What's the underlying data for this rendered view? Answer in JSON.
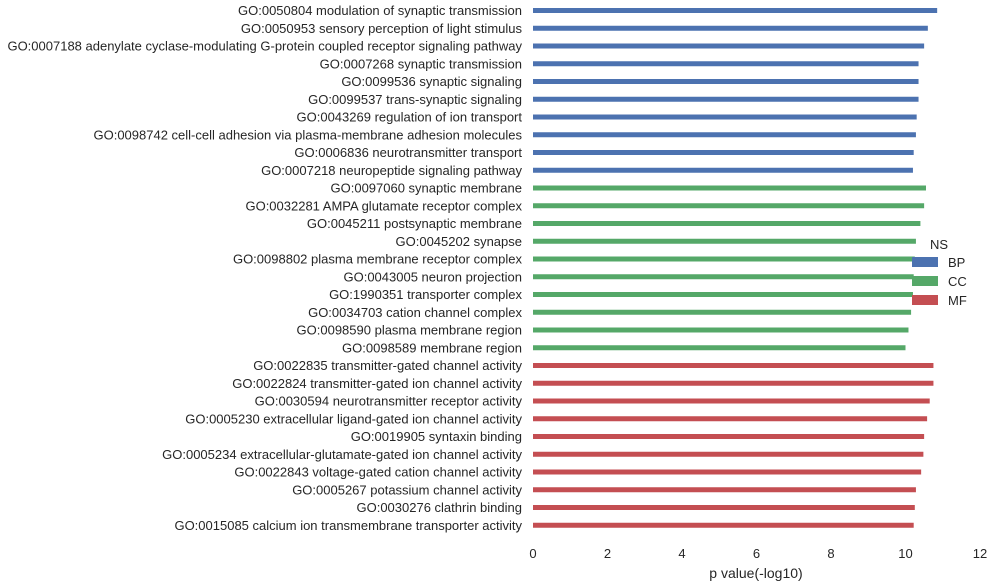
{
  "chart_data": {
    "type": "bar",
    "orientation": "horizontal",
    "xlabel": "p value(-log10)",
    "ylabel": "",
    "xlim": [
      0,
      12
    ],
    "xticks": [
      0,
      2,
      4,
      6,
      8,
      10,
      12
    ],
    "grid": false,
    "legend": {
      "title": "NS",
      "placement": "right",
      "entries": [
        "BP",
        "CC",
        "MF"
      ]
    },
    "series_colors": {
      "BP": "#4c72b0",
      "CC": "#55a868",
      "MF": "#c44e52"
    },
    "categories": [
      "GO:0050804 modulation of synaptic transmission",
      "GO:0050953 sensory perception of light stimulus",
      "GO:0007188 adenylate cyclase-modulating G-protein coupled receptor signaling pathway",
      "GO:0007268 synaptic transmission",
      "GO:0099536 synaptic signaling",
      "GO:0099537 trans-synaptic signaling",
      "GO:0043269 regulation of ion transport",
      "GO:0098742 cell-cell adhesion via plasma-membrane adhesion molecules",
      "GO:0006836 neurotransmitter transport",
      "GO:0007218 neuropeptide signaling pathway",
      "GO:0097060 synaptic membrane",
      "GO:0032281 AMPA glutamate receptor complex",
      "GO:0045211 postsynaptic membrane",
      "GO:0045202 synapse",
      "GO:0098802 plasma membrane receptor complex",
      "GO:0043005 neuron projection",
      "GO:1990351 transporter complex",
      "GO:0034703 cation channel complex",
      "GO:0098590 plasma membrane region",
      "GO:0098589 membrane region",
      "GO:0022835 transmitter-gated channel activity",
      "GO:0022824 transmitter-gated ion channel activity",
      "GO:0030594 neurotransmitter receptor activity",
      "GO:0005230 extracellular ligand-gated ion channel activity",
      "GO:0019905 syntaxin binding",
      "GO:0005234 extracellular-glutamate-gated ion channel activity",
      "GO:0022843 voltage-gated cation channel activity",
      "GO:0005267 potassium channel activity",
      "GO:0030276 clathrin binding",
      "GO:0015085 calcium ion transmembrane transporter activity"
    ],
    "groups": [
      "BP",
      "BP",
      "BP",
      "BP",
      "BP",
      "BP",
      "BP",
      "BP",
      "BP",
      "BP",
      "CC",
      "CC",
      "CC",
      "CC",
      "CC",
      "CC",
      "CC",
      "CC",
      "CC",
      "CC",
      "MF",
      "MF",
      "MF",
      "MF",
      "MF",
      "MF",
      "MF",
      "MF",
      "MF",
      "MF"
    ],
    "values": [
      10.85,
      10.6,
      10.5,
      10.35,
      10.35,
      10.35,
      10.3,
      10.28,
      10.22,
      10.2,
      10.55,
      10.5,
      10.4,
      10.28,
      10.25,
      10.22,
      10.2,
      10.15,
      10.08,
      10.0,
      10.75,
      10.75,
      10.65,
      10.58,
      10.5,
      10.48,
      10.42,
      10.28,
      10.25,
      10.22
    ]
  }
}
